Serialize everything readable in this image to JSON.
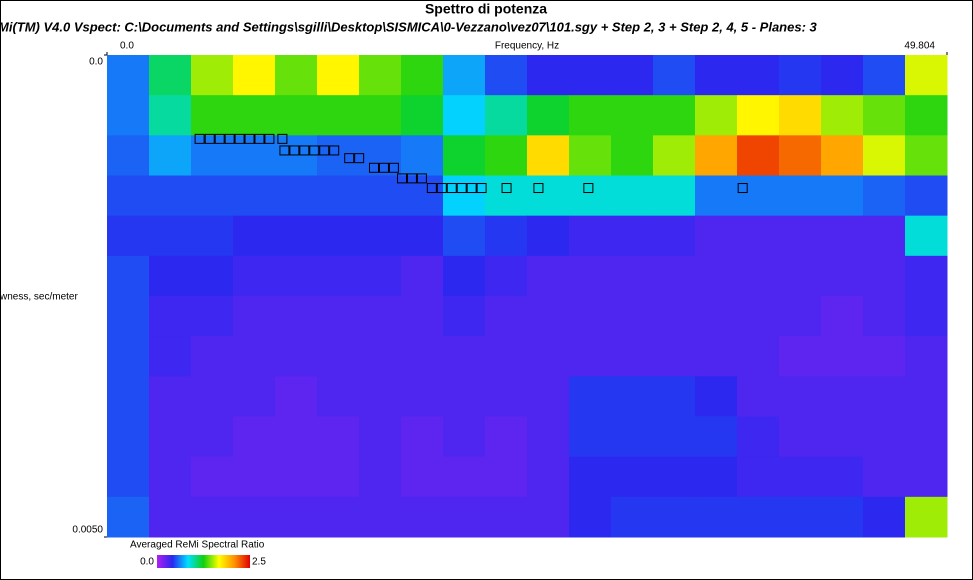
{
  "chart_data": {
    "type": "heatmap",
    "title": "Spettro di potenza",
    "subtitle": "Mi(TM) V4.0 Vspect: C:\\Documents and Settings\\sgilli\\Desktop\\SISMICA\\0-Vezzano\\vez07\\101.sgy + Step 2, 3 + Step 2, 4, 5 - Planes: 3",
    "x_label": "Frequency, Hz",
    "y_label": "wness, sec/meter",
    "xlim": [
      0,
      49.804
    ],
    "ylim": [
      0,
      0.005
    ],
    "xticks": [
      {
        "value": 0,
        "label": "0.0"
      },
      49.804
    ],
    "yticks": [
      {
        "value": 0,
        "label": "0.0"
      },
      {
        "value": 0.005,
        "label": "0.0050"
      }
    ],
    "colorbar_title": "Averaged ReMi Spectral Ratio",
    "colorbar_lim": [
      0,
      2.5
    ],
    "colorbar_ticks": [
      {
        "value": 0,
        "label": "0.0"
      },
      {
        "value": 2.5,
        "label": "2.5"
      }
    ],
    "colorscale": [
      "#b020f0",
      "#2828f0",
      "#00e0ff",
      "#10d010",
      "#ffff00",
      "#ff9000",
      "#e00000"
    ],
    "values": [
      [
        0.6,
        1.1,
        1.5,
        1.7,
        1.4,
        1.7,
        1.4,
        1.3,
        0.7,
        0.5,
        0.4,
        0.4,
        0.4,
        0.5,
        0.4,
        0.4,
        0.45,
        0.4,
        0.5,
        1.6
      ],
      [
        0.6,
        1.0,
        1.3,
        1.3,
        1.3,
        1.3,
        1.3,
        1.2,
        0.8,
        1.0,
        1.2,
        1.3,
        1.3,
        1.3,
        1.5,
        1.7,
        1.8,
        1.5,
        1.4,
        1.3
      ],
      [
        0.55,
        0.7,
        0.6,
        0.6,
        0.6,
        0.55,
        0.55,
        0.6,
        1.2,
        1.3,
        1.8,
        1.4,
        1.3,
        1.5,
        2.0,
        2.3,
        2.2,
        2.0,
        1.6,
        1.4
      ],
      [
        0.5,
        0.5,
        0.5,
        0.5,
        0.5,
        0.5,
        0.5,
        0.5,
        0.8,
        0.9,
        0.9,
        0.9,
        0.9,
        0.9,
        0.6,
        0.6,
        0.6,
        0.6,
        0.55,
        0.5
      ],
      [
        0.45,
        0.45,
        0.45,
        0.4,
        0.4,
        0.4,
        0.4,
        0.4,
        0.5,
        0.45,
        0.4,
        0.35,
        0.35,
        0.35,
        0.3,
        0.3,
        0.3,
        0.3,
        0.3,
        0.9
      ],
      [
        0.5,
        0.4,
        0.4,
        0.35,
        0.35,
        0.35,
        0.35,
        0.3,
        0.4,
        0.35,
        0.3,
        0.3,
        0.3,
        0.3,
        0.3,
        0.3,
        0.3,
        0.3,
        0.3,
        0.35
      ],
      [
        0.5,
        0.35,
        0.35,
        0.3,
        0.3,
        0.3,
        0.3,
        0.3,
        0.35,
        0.3,
        0.3,
        0.3,
        0.3,
        0.3,
        0.3,
        0.3,
        0.3,
        0.25,
        0.3,
        0.35
      ],
      [
        0.5,
        0.35,
        0.3,
        0.3,
        0.3,
        0.3,
        0.3,
        0.3,
        0.3,
        0.3,
        0.3,
        0.3,
        0.3,
        0.3,
        0.3,
        0.3,
        0.25,
        0.25,
        0.25,
        0.3
      ],
      [
        0.5,
        0.3,
        0.3,
        0.3,
        0.25,
        0.3,
        0.3,
        0.3,
        0.3,
        0.3,
        0.3,
        0.45,
        0.45,
        0.45,
        0.4,
        0.3,
        0.3,
        0.3,
        0.3,
        0.3
      ],
      [
        0.5,
        0.3,
        0.3,
        0.25,
        0.25,
        0.25,
        0.3,
        0.25,
        0.3,
        0.25,
        0.3,
        0.45,
        0.45,
        0.45,
        0.45,
        0.35,
        0.3,
        0.3,
        0.3,
        0.3
      ],
      [
        0.5,
        0.3,
        0.25,
        0.25,
        0.25,
        0.25,
        0.3,
        0.25,
        0.25,
        0.25,
        0.3,
        0.4,
        0.4,
        0.4,
        0.4,
        0.35,
        0.35,
        0.35,
        0.3,
        0.3
      ],
      [
        0.55,
        0.3,
        0.3,
        0.3,
        0.3,
        0.3,
        0.3,
        0.3,
        0.3,
        0.3,
        0.3,
        0.4,
        0.45,
        0.45,
        0.45,
        0.45,
        0.45,
        0.45,
        0.4,
        1.5
      ]
    ],
    "picks": {
      "x": [
        5.49,
        6.09,
        6.68,
        7.27,
        7.86,
        8.45,
        9.04,
        9.63,
        10.4,
        10.52,
        11.11,
        11.7,
        12.29,
        12.88,
        13.47,
        14.36,
        14.95,
        15.83,
        16.42,
        17.01,
        17.49,
        18.08,
        18.67,
        19.26,
        19.85,
        20.44,
        21.03,
        21.62,
        22.21,
        23.69,
        25.58,
        28.54,
        37.69
      ],
      "y": [
        0.00087,
        0.00087,
        0.00087,
        0.00087,
        0.00087,
        0.00087,
        0.00087,
        0.00087,
        0.00087,
        0.00099,
        0.00099,
        0.00099,
        0.00099,
        0.00099,
        0.00099,
        0.00107,
        0.00107,
        0.00117,
        0.00117,
        0.00117,
        0.00128,
        0.00128,
        0.00128,
        0.00138,
        0.00138,
        0.00138,
        0.00138,
        0.00138,
        0.00138,
        0.00138,
        0.00138,
        0.00138,
        0.00138
      ]
    }
  }
}
